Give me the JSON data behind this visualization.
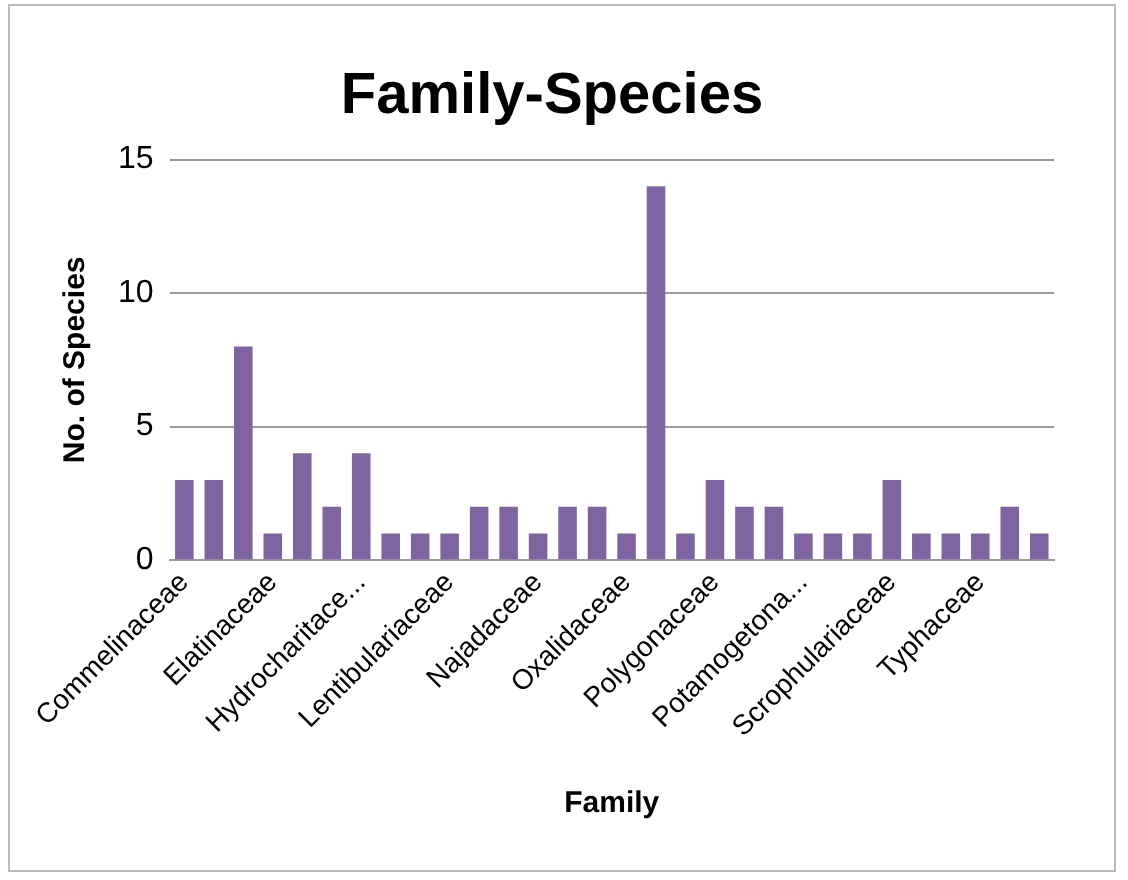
{
  "chart_data": {
    "type": "bar",
    "title": "Family-Species",
    "xlabel": "Family",
    "ylabel": "No. of Species",
    "categories": [
      "Commelinaceae",
      null,
      null,
      "Elatinaceae",
      null,
      null,
      "Hydrocharitace...",
      null,
      null,
      "Lentibulariaceae",
      null,
      null,
      "Najadaceae",
      null,
      null,
      "Oxalidaceae",
      null,
      null,
      "Polygonaceae",
      null,
      null,
      "Potamogetona...",
      null,
      null,
      "Scrophulariaceae",
      null,
      null,
      "Typhaceae",
      null,
      null
    ],
    "values": [
      3,
      3,
      8,
      1,
      4,
      2,
      4,
      1,
      1,
      1,
      2,
      2,
      1,
      2,
      2,
      1,
      14,
      1,
      3,
      2,
      2,
      1,
      1,
      1,
      3,
      1,
      1,
      1,
      2,
      1
    ],
    "color": "#8064a2",
    "ylim": [
      0,
      15
    ],
    "yticks": [
      0,
      5,
      10,
      15
    ],
    "grid": "y",
    "legend": false
  }
}
